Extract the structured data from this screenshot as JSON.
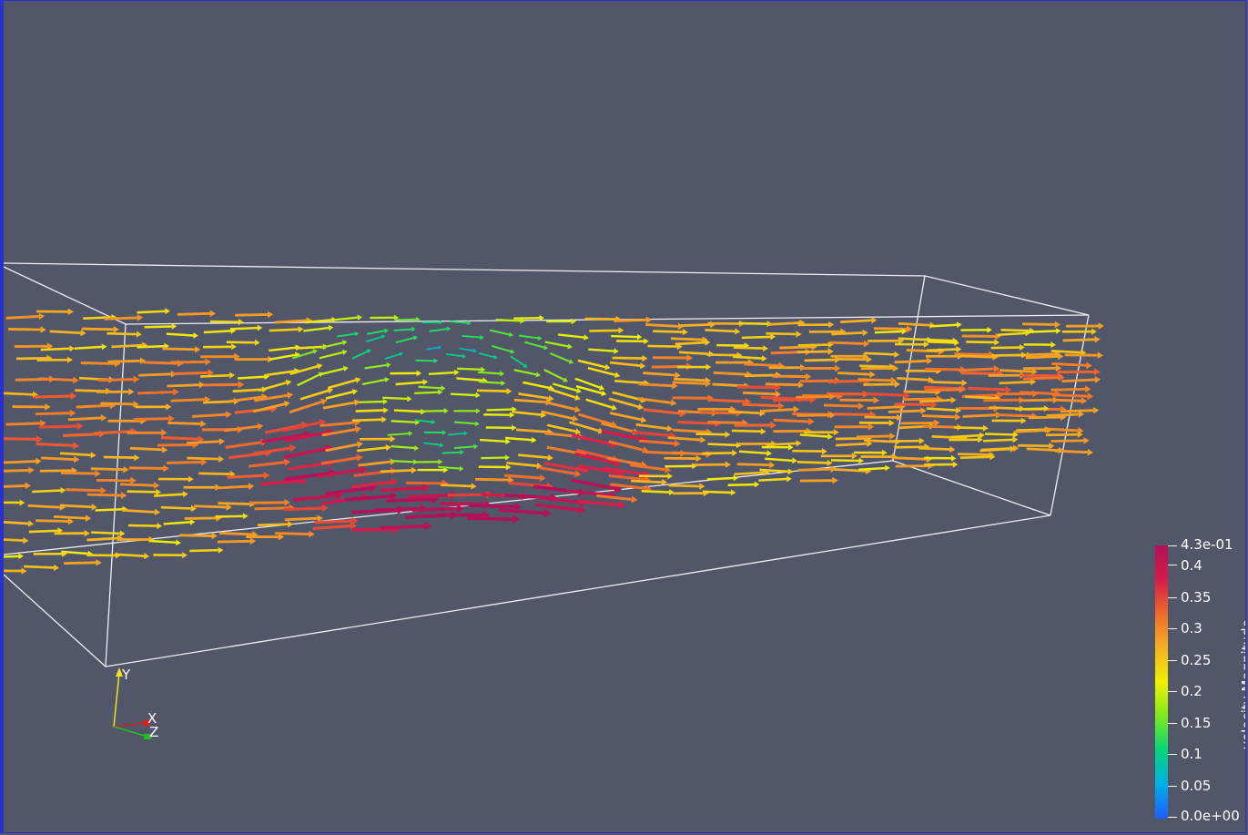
{
  "colormap": {
    "title": "velocity Magnitude",
    "range": [
      0.0,
      0.43
    ],
    "max_label": "4.3e-01",
    "min_label": "0.0e+00",
    "ticks": [
      "0.4",
      "0.35",
      "0.3",
      "0.25",
      "0.2",
      "0.15",
      "0.1",
      "0.05"
    ],
    "stops": [
      "#1e5cff",
      "#00aee8",
      "#00d67a",
      "#7fe81c",
      "#f0f000",
      "#f5b020",
      "#ef6b2c",
      "#d61a4a",
      "#b0125a"
    ]
  },
  "axes": {
    "x": "X",
    "y": "Y",
    "z": "Z",
    "x_color": "#d02020",
    "y_color": "#f0e020",
    "z_color": "#20c020"
  },
  "scene": {
    "background": "#525669",
    "outline_color": "#ffffff",
    "glyph_type": "arrow"
  }
}
